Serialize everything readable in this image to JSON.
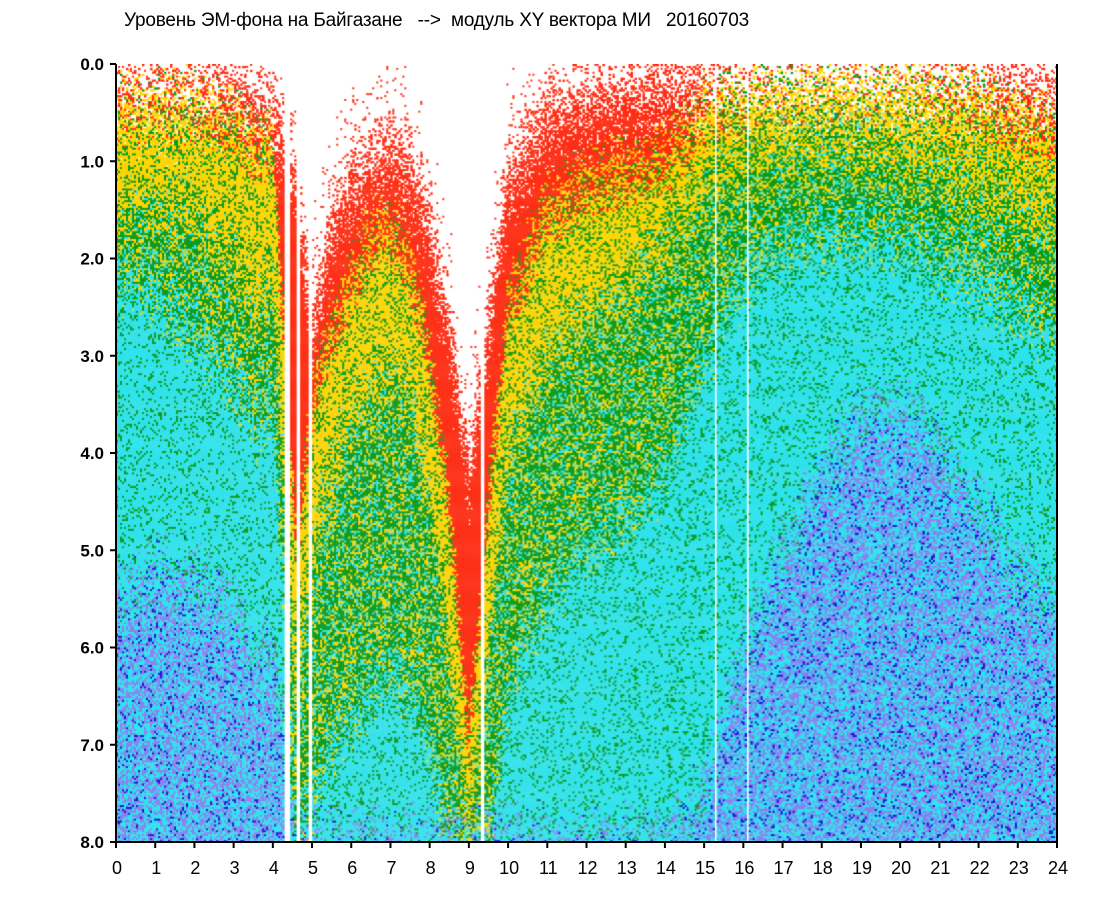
{
  "chart_data": {
    "type": "heatmap",
    "title": "Уровень ЭМ-фона на Байгазане   -->  модуль XY вектора МИ   20160703",
    "xlabel": "",
    "ylabel": "",
    "xlim": [
      0,
      24
    ],
    "ylim": [
      0.0,
      8.0
    ],
    "y_inverted": true,
    "grid": false,
    "x_ticks": [
      "0",
      "1",
      "2",
      "3",
      "4",
      "5",
      "6",
      "7",
      "8",
      "9",
      "10",
      "11",
      "12",
      "13",
      "14",
      "15",
      "16",
      "17",
      "18",
      "19",
      "20",
      "21",
      "22",
      "23",
      "24"
    ],
    "y_ticks": [
      "0.0",
      "1.0",
      "2.0",
      "3.0",
      "4.0",
      "5.0",
      "6.0",
      "7.0",
      "8.0"
    ],
    "colors": {
      "band_0": "#ff2a10",
      "band_1": "#ffd400",
      "band_2": "#0a9a1a",
      "band_3": "#2fe2ec",
      "band_4": "#8a7ff0",
      "band_5": "#1a14d8"
    },
    "level_profile": {
      "hours": [
        0,
        1,
        2,
        3,
        3.6,
        4.0,
        4.6,
        5.0,
        5.5,
        6.0,
        6.5,
        7.0,
        7.5,
        8.0,
        8.5,
        9.0,
        9.5,
        10.0,
        11.0,
        12.0,
        13.0,
        14.0,
        15.0,
        16.0,
        17.0,
        18.0,
        19.0,
        20.0,
        21.0,
        22.0,
        23.0,
        24.0
      ],
      "red_depth": [
        0.5,
        0.4,
        0.45,
        0.6,
        0.9,
        0.8,
        5.0,
        3.5,
        2.8,
        2.2,
        1.8,
        1.7,
        2.0,
        3.0,
        4.5,
        7.0,
        4.5,
        2.5,
        1.5,
        1.2,
        1.1,
        1.0,
        0.5,
        0.3,
        0.25,
        0.2,
        0.2,
        0.25,
        0.3,
        0.4,
        0.6,
        0.7
      ],
      "yellow_depth": [
        1.5,
        1.4,
        1.6,
        2.0,
        2.5,
        2.2,
        6.5,
        5.0,
        4.2,
        3.6,
        3.3,
        3.2,
        3.4,
        4.5,
        6.0,
        8.0,
        6.0,
        4.0,
        3.0,
        2.6,
        2.3,
        1.8,
        1.3,
        1.0,
        0.9,
        0.8,
        0.8,
        0.9,
        1.0,
        1.2,
        1.4,
        1.5
      ],
      "green_depth": [
        2.2,
        2.4,
        2.8,
        3.2,
        3.8,
        3.5,
        8.0,
        7.5,
        7.0,
        6.8,
        6.5,
        6.3,
        6.5,
        7.0,
        8.0,
        8.0,
        8.0,
        6.5,
        5.5,
        5.0,
        4.7,
        4.2,
        3.0,
        2.2,
        1.9,
        1.8,
        1.7,
        1.8,
        2.0,
        2.2,
        2.5,
        2.8
      ],
      "cyan_depth": [
        5.5,
        5.2,
        5.3,
        5.6,
        6.2,
        6.0,
        8.0,
        8.0,
        8.0,
        8.0,
        8.0,
        8.0,
        8.0,
        8.0,
        8.0,
        8.0,
        8.0,
        8.0,
        8.0,
        8.0,
        8.0,
        8.0,
        7.5,
        6.0,
        5.0,
        4.2,
        3.6,
        3.5,
        3.9,
        4.6,
        5.2,
        5.6
      ],
      "top_gap": [
        0.08,
        0.08,
        0.09,
        0.1,
        0.25,
        0.3,
        1.0,
        2.5,
        1.5,
        1.0,
        0.8,
        0.7,
        0.9,
        1.5,
        2.5,
        4.0,
        2.5,
        1.0,
        0.3,
        0.15,
        0.1,
        0.05,
        0.05,
        0.04,
        0.04,
        0.03,
        0.03,
        0.03,
        0.04,
        0.05,
        0.08,
        0.15
      ]
    },
    "white_gaps_hours": [
      [
        4.3,
        4.45
      ],
      [
        4.62,
        4.68
      ],
      [
        4.9,
        5.0
      ],
      [
        9.3,
        9.38
      ],
      [
        15.25,
        15.3
      ],
      [
        16.1,
        16.16
      ]
    ]
  }
}
